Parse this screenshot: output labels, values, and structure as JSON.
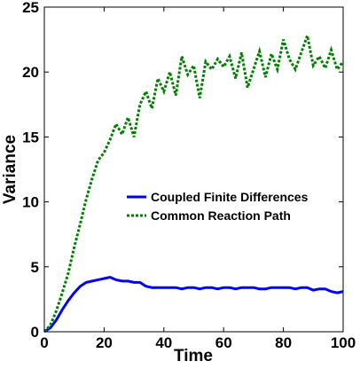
{
  "chart_data": {
    "type": "line",
    "x_label": "Time",
    "y_label": "Variance",
    "x": [
      0,
      2,
      4,
      6,
      8,
      10,
      12,
      14,
      16,
      18,
      20,
      22,
      24,
      26,
      28,
      30,
      32,
      34,
      36,
      38,
      40,
      42,
      44,
      46,
      48,
      50,
      52,
      54,
      56,
      58,
      60,
      62,
      64,
      66,
      68,
      70,
      72,
      74,
      76,
      78,
      80,
      82,
      84,
      86,
      88,
      90,
      92,
      94,
      96,
      98,
      100
    ],
    "series": [
      {
        "name": "Coupled Finite Differences",
        "color": "#0000ff",
        "dash": "solid",
        "values": [
          0,
          0.3,
          0.9,
          1.7,
          2.4,
          3.0,
          3.5,
          3.8,
          3.9,
          4.0,
          4.1,
          4.2,
          4.0,
          3.9,
          3.9,
          3.8,
          3.8,
          3.5,
          3.4,
          3.4,
          3.4,
          3.4,
          3.4,
          3.3,
          3.4,
          3.4,
          3.3,
          3.4,
          3.4,
          3.3,
          3.4,
          3.4,
          3.3,
          3.4,
          3.4,
          3.4,
          3.3,
          3.3,
          3.4,
          3.4,
          3.4,
          3.4,
          3.3,
          3.4,
          3.4,
          3.2,
          3.3,
          3.3,
          3.1,
          3.0,
          3.1
        ]
      },
      {
        "name": "Common Reaction Path",
        "color": "#008000",
        "dash": "dotted",
        "values": [
          0,
          0.5,
          1.6,
          3.0,
          4.5,
          6.5,
          8.3,
          10.2,
          11.8,
          13.2,
          13.8,
          14.8,
          16.0,
          15.2,
          16.5,
          15.0,
          17.5,
          18.5,
          17.2,
          19.5,
          18.5,
          20.0,
          18.2,
          21.2,
          19.8,
          20.5,
          18.0,
          20.8,
          20.2,
          21.0,
          20.4,
          21.2,
          19.5,
          21.5,
          18.8,
          20.2,
          21.6,
          19.6,
          21.4,
          20.2,
          22.5,
          21.0,
          20.2,
          21.5,
          22.8,
          20.5,
          21.2,
          20.3,
          21.7,
          20.2,
          20.8
        ]
      }
    ],
    "xlim": [
      0,
      100
    ],
    "xticks": [
      0,
      20,
      40,
      60,
      80,
      100
    ],
    "ylim": [
      0,
      25
    ],
    "yticks": [
      0,
      5,
      10,
      15,
      20,
      25
    ],
    "grid": false,
    "legend": "center right"
  }
}
